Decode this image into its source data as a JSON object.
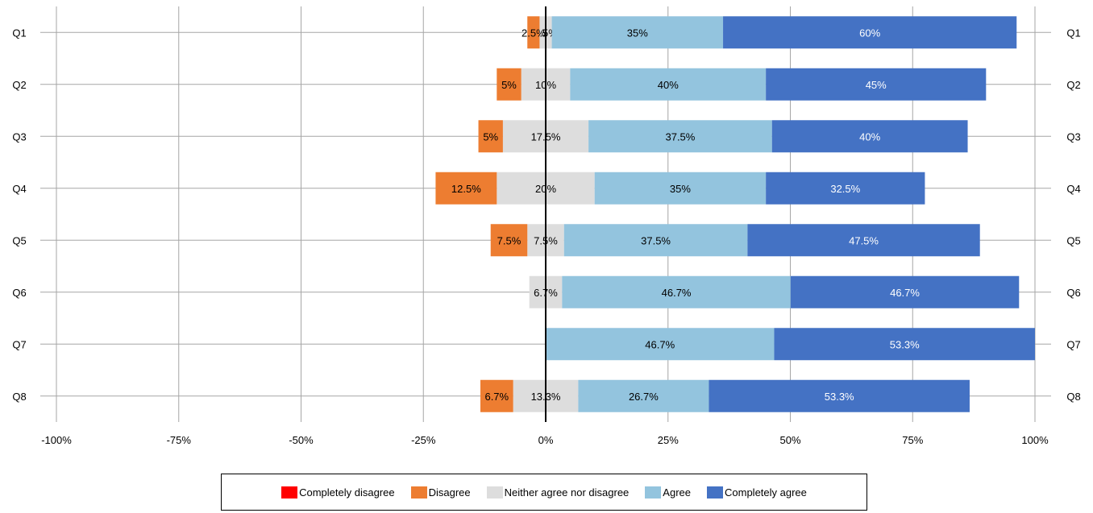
{
  "chart_data": {
    "type": "bar",
    "orientation": "horizontal",
    "stacked": "diverging",
    "categories": [
      "Q1",
      "Q2",
      "Q3",
      "Q4",
      "Q5",
      "Q6",
      "Q7",
      "Q8"
    ],
    "xlim": [
      -100,
      100
    ],
    "x_ticks": [
      -100,
      -75,
      -50,
      -25,
      0,
      25,
      50,
      75,
      100
    ],
    "x_tick_labels": [
      "-100%",
      "-75%",
      "-50%",
      "-25%",
      "0%",
      "25%",
      "50%",
      "75%",
      "100%"
    ],
    "grid": true,
    "legend_position": "bottom",
    "series": [
      {
        "name": "Completely disagree",
        "color": "#ff0000",
        "values": [
          0,
          0,
          0,
          0,
          0,
          0,
          0,
          0
        ],
        "labels": [
          "",
          "",
          "",
          "",
          "",
          "",
          "",
          ""
        ],
        "label_color": "#000000"
      },
      {
        "name": "Disagree",
        "color": "#ed7d31",
        "values": [
          2.5,
          5,
          5,
          12.5,
          7.5,
          0,
          0,
          6.7
        ],
        "labels": [
          "2.5%",
          "5%",
          "5%",
          "12.5%",
          "7.5%",
          "",
          "",
          "6.7%"
        ],
        "label_color": "#000000"
      },
      {
        "name": "Neither agree nor disagree",
        "color": "#dddddd",
        "values": [
          2.5,
          10,
          17.5,
          20,
          7.5,
          6.7,
          0,
          13.3
        ],
        "labels": [
          "2.5%",
          "10%",
          "17.5%",
          "20%",
          "7.5%",
          "6.7%",
          "",
          "13.3%"
        ],
        "label_color": "#000000"
      },
      {
        "name": "Agree",
        "color": "#93c4de",
        "values": [
          35,
          40,
          37.5,
          35,
          37.5,
          46.7,
          46.7,
          26.7
        ],
        "labels": [
          "35%",
          "40%",
          "37.5%",
          "35%",
          "37.5%",
          "46.7%",
          "46.7%",
          "26.7%"
        ],
        "label_color": "#000000"
      },
      {
        "name": "Completely agree",
        "color": "#4472c4",
        "values": [
          60,
          45,
          40,
          32.5,
          47.5,
          46.7,
          53.3,
          53.3
        ],
        "labels": [
          "60%",
          "45%",
          "40%",
          "32.5%",
          "47.5%",
          "46.7%",
          "53.3%",
          "53.3%"
        ],
        "label_color": "#ffffff"
      }
    ]
  }
}
